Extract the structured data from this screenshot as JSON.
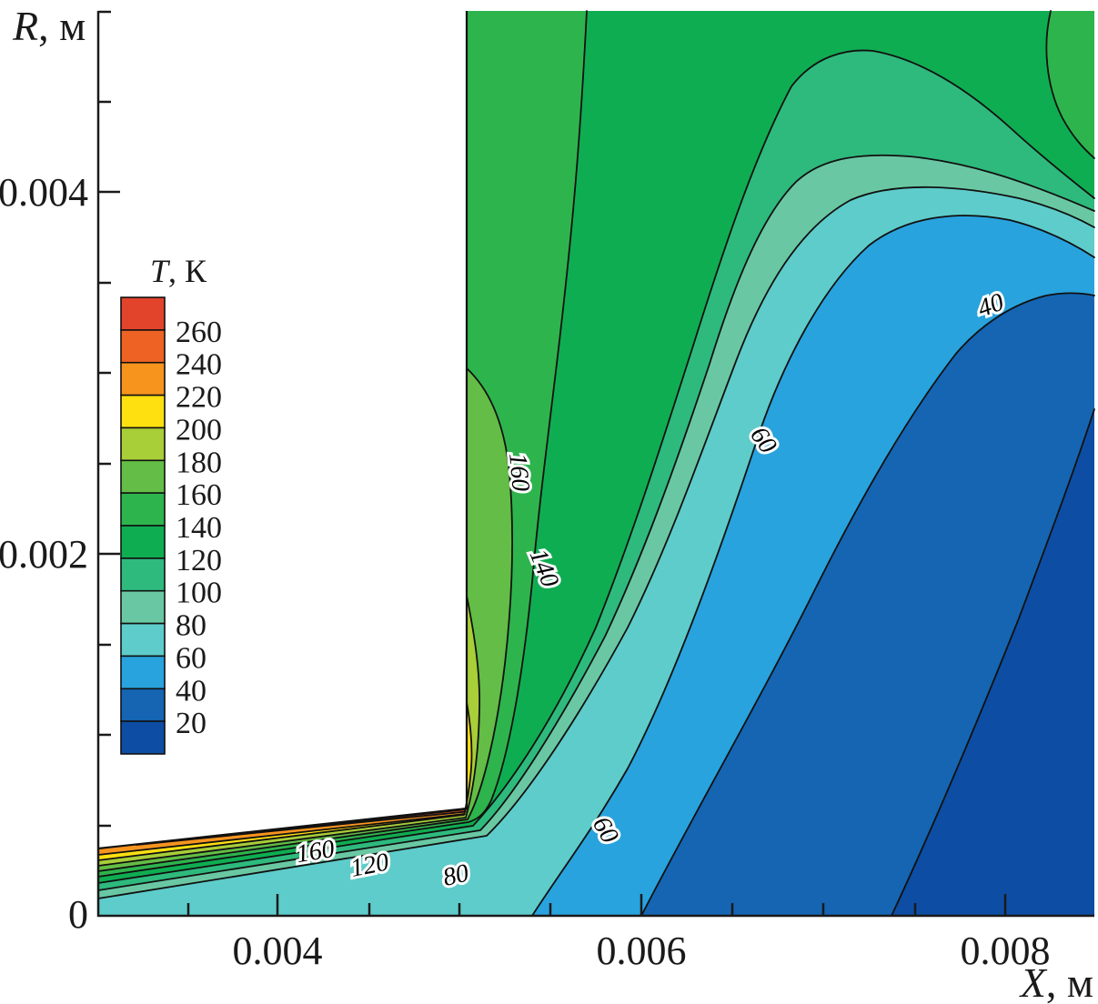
{
  "chart_data": {
    "type": "heatmap",
    "subtype": "filled-contour",
    "title": "",
    "xlabel": "X, м",
    "ylabel": "R, м",
    "x_tick_labels": [
      "0.004",
      "0.006",
      "0.008"
    ],
    "x_ticks": [
      0.004,
      0.006,
      0.008
    ],
    "y_tick_labels": [
      "0",
      "0.002",
      "0.004"
    ],
    "y_ticks": [
      0,
      0.002,
      0.004
    ],
    "xlim": [
      0.003,
      0.0085
    ],
    "ylim": [
      0,
      0.005
    ],
    "minor_tick_step": 0.0005,
    "grid": false,
    "legend_position": "left-inside",
    "legend_title": "T, К",
    "legend_labels": [
      "260",
      "240",
      "220",
      "200",
      "180",
      "160",
      "140",
      "120",
      "100",
      "80",
      "60",
      "40",
      "20"
    ],
    "contour_levels": [
      20,
      40,
      60,
      80,
      100,
      120,
      140,
      160,
      180,
      200,
      220,
      240,
      260
    ],
    "bands": [
      {
        "id": "gt260",
        "range": "> 260 K",
        "color": "#e2432b"
      },
      {
        "id": "240-260",
        "range": "240–260 K",
        "color": "#ee6323"
      },
      {
        "id": "220-240",
        "range": "220–240 K",
        "color": "#f7941e"
      },
      {
        "id": "200-220",
        "range": "200–220 K",
        "color": "#fee011"
      },
      {
        "id": "180-200",
        "range": "180–200 K",
        "color": "#a8ce38"
      },
      {
        "id": "160-180",
        "range": "160–180 K",
        "color": "#63bd46"
      },
      {
        "id": "140-160",
        "range": "140–160 K",
        "color": "#2eb44d"
      },
      {
        "id": "120-140",
        "range": "120–140 K",
        "color": "#0fad51"
      },
      {
        "id": "100-120",
        "range": "100–120 K",
        "color": "#2eba7d"
      },
      {
        "id": "80-100",
        "range": "80–100 K",
        "color": "#69c8a3"
      },
      {
        "id": "60-80",
        "range": "60–80 K",
        "color": "#5eccca"
      },
      {
        "id": "40-60",
        "range": "40–60 K",
        "color": "#28a3de"
      },
      {
        "id": "20-40",
        "range": "20–40 K",
        "color": "#1565b2"
      },
      {
        "id": "lt20",
        "range": "< 20 K",
        "color": "#0d4da3"
      }
    ],
    "contour_labels": [
      {
        "text": "160",
        "X": 0.00529,
        "R": 0.00245
      },
      {
        "text": "140",
        "X": 0.00542,
        "R": 0.0019
      },
      {
        "text": "60",
        "X": 0.00664,
        "R": 0.0026
      },
      {
        "text": "40",
        "X": 0.00794,
        "R": 0.00334
      },
      {
        "text": "160",
        "X": 0.00402,
        "R": 0.00035
      },
      {
        "text": "120",
        "X": 0.00452,
        "R": 0.00028
      },
      {
        "text": "80",
        "X": 0.00499,
        "R": 0.00022
      },
      {
        "text": "60",
        "X": 0.00577,
        "R": 0.00045
      }
    ],
    "notes": {
      "blank_region": "no data for X < 0.005 м and R > ~0.0006 м (body/wall region, white)",
      "hot_layer": "thin hot layer (up to >260 K) along R ≈ 0 wall for X < 0.005 м, bending upward at the corner X ≈ 0.005 м",
      "cold_core": "cold region (< 20 K) at lower right, X > ~0.0075 м near R = 0",
      "warm_pocket": "local 140–160 K pocket at upper right corner"
    }
  }
}
